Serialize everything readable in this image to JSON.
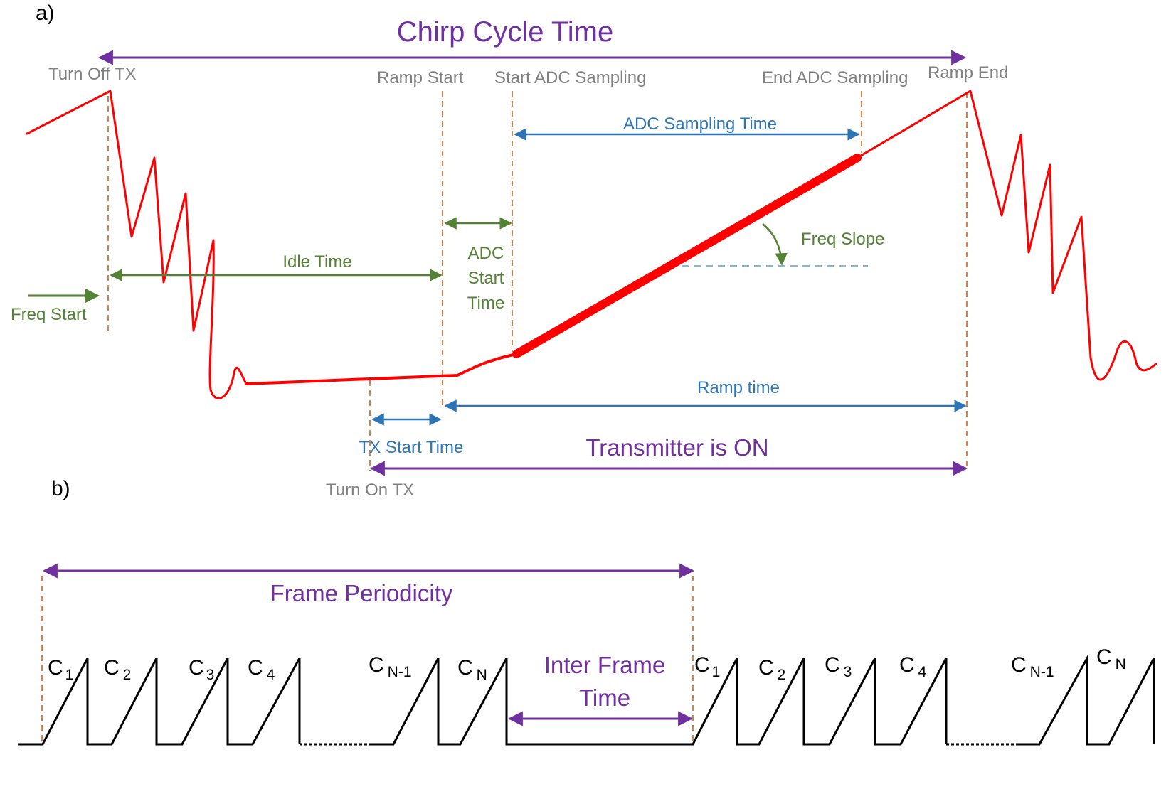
{
  "panel_a": {
    "label": "a)",
    "title": "Chirp Cycle Time",
    "labels": {
      "turn_off_tx": "Turn Off TX",
      "ramp_start": "Ramp Start",
      "start_adc": "Start ADC Sampling",
      "end_adc": "End ADC Sampling",
      "ramp_end": "Ramp End",
      "adc_sampling_time": "ADC Sampling Time",
      "freq_slope": "Freq Slope",
      "idle_time": "Idle Time",
      "adc_start_1": "ADC",
      "adc_start_2": "Start",
      "adc_start_3": "Time",
      "freq_start": "Freq Start",
      "ramp_time": "Ramp time",
      "tx_start_time": "TX Start Time",
      "transmitter_on": "Transmitter is ON",
      "turn_on_tx": "Turn On TX"
    }
  },
  "panel_b": {
    "label": "b)",
    "frame_periodicity": "Frame Periodicity",
    "inter_frame_1": "Inter Frame",
    "inter_frame_2": "Time",
    "chirps_frame1": [
      {
        "c": "C",
        "sub": "1"
      },
      {
        "c": "C",
        "sub": "2"
      },
      {
        "c": "C",
        "sub": "3"
      },
      {
        "c": "C",
        "sub": "4"
      },
      {
        "c": "C",
        "sub": "N-1"
      },
      {
        "c": "C",
        "sub": "N"
      }
    ],
    "chirps_frame2": [
      {
        "c": "C",
        "sub": "1"
      },
      {
        "c": "C",
        "sub": "2"
      },
      {
        "c": "C",
        "sub": "3"
      },
      {
        "c": "C",
        "sub": "4"
      },
      {
        "c": "C",
        "sub": "N-1"
      },
      {
        "c": "C",
        "sub": "N"
      }
    ]
  },
  "colors": {
    "signal": "#ff0000",
    "purple": "#7030a0",
    "blue": "#2e75b6",
    "green": "#548235",
    "gray": "#808080",
    "guide": "#c55a11"
  }
}
